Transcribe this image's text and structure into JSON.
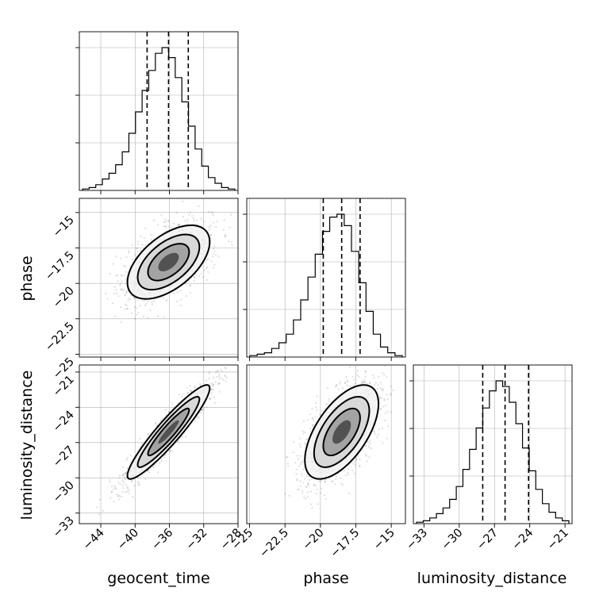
{
  "chart_data": {
    "type": "scatter",
    "parameters": [
      {
        "name": "geocent_time",
        "label": "geocent_time",
        "lim": [
          -46.5,
          -28.0
        ],
        "ticks": [
          -44,
          -40,
          -36,
          -32,
          -28
        ],
        "quantiles": [
          -38.6,
          -36.1,
          -33.8
        ]
      },
      {
        "name": "phase",
        "label": "phase",
        "lim": [
          -25.2,
          -14.0
        ],
        "ticks": [
          -25.0,
          -22.5,
          -20.0,
          -17.5,
          -15.0
        ],
        "quantiles": [
          -19.8,
          -18.5,
          -17.2
        ]
      },
      {
        "name": "luminosity_distance",
        "label": "luminosity_distance",
        "lim": [
          -33.9,
          -20.4
        ],
        "ticks": [
          -33,
          -30,
          -27,
          -24,
          -21
        ],
        "quantiles": [
          -28.0,
          -26.1,
          -24.1
        ]
      }
    ],
    "histograms": [
      {
        "param": "geocent_time",
        "counts": [
          0.01,
          0.02,
          0.04,
          0.08,
          0.12,
          0.18,
          0.27,
          0.4,
          0.55,
          0.7,
          0.84,
          0.96,
          1.0,
          0.93,
          0.79,
          0.62,
          0.45,
          0.29,
          0.17,
          0.09,
          0.05,
          0.02,
          0.01
        ]
      },
      {
        "param": "phase",
        "counts": [
          0.01,
          0.02,
          0.03,
          0.06,
          0.1,
          0.16,
          0.26,
          0.4,
          0.56,
          0.72,
          0.88,
          0.98,
          1.0,
          0.92,
          0.74,
          0.52,
          0.32,
          0.16,
          0.07,
          0.03,
          0.01
        ]
      },
      {
        "param": "luminosity_distance",
        "counts": [
          0.01,
          0.02,
          0.04,
          0.07,
          0.11,
          0.17,
          0.26,
          0.38,
          0.52,
          0.67,
          0.81,
          0.93,
          1.0,
          0.96,
          0.85,
          0.7,
          0.53,
          0.37,
          0.24,
          0.14,
          0.08,
          0.04,
          0.02
        ]
      }
    ],
    "pairs": [
      {
        "x": "geocent_time",
        "y": "phase",
        "mean": [
          -36.1,
          -18.5
        ],
        "sd": [
          2.4,
          1.3
        ],
        "corr": 0.55
      },
      {
        "x": "geocent_time",
        "y": "luminosity_distance",
        "mean": [
          -36.1,
          -26.1
        ],
        "sd": [
          2.4,
          2.0
        ],
        "corr": 0.93
      },
      {
        "x": "phase",
        "y": "luminosity_distance",
        "mean": [
          -18.5,
          -26.1
        ],
        "sd": [
          1.3,
          2.0
        ],
        "corr": 0.6
      }
    ],
    "contour_levels_sigma": [
      0.5,
      1.0,
      1.5,
      2.0
    ],
    "grid": true
  }
}
